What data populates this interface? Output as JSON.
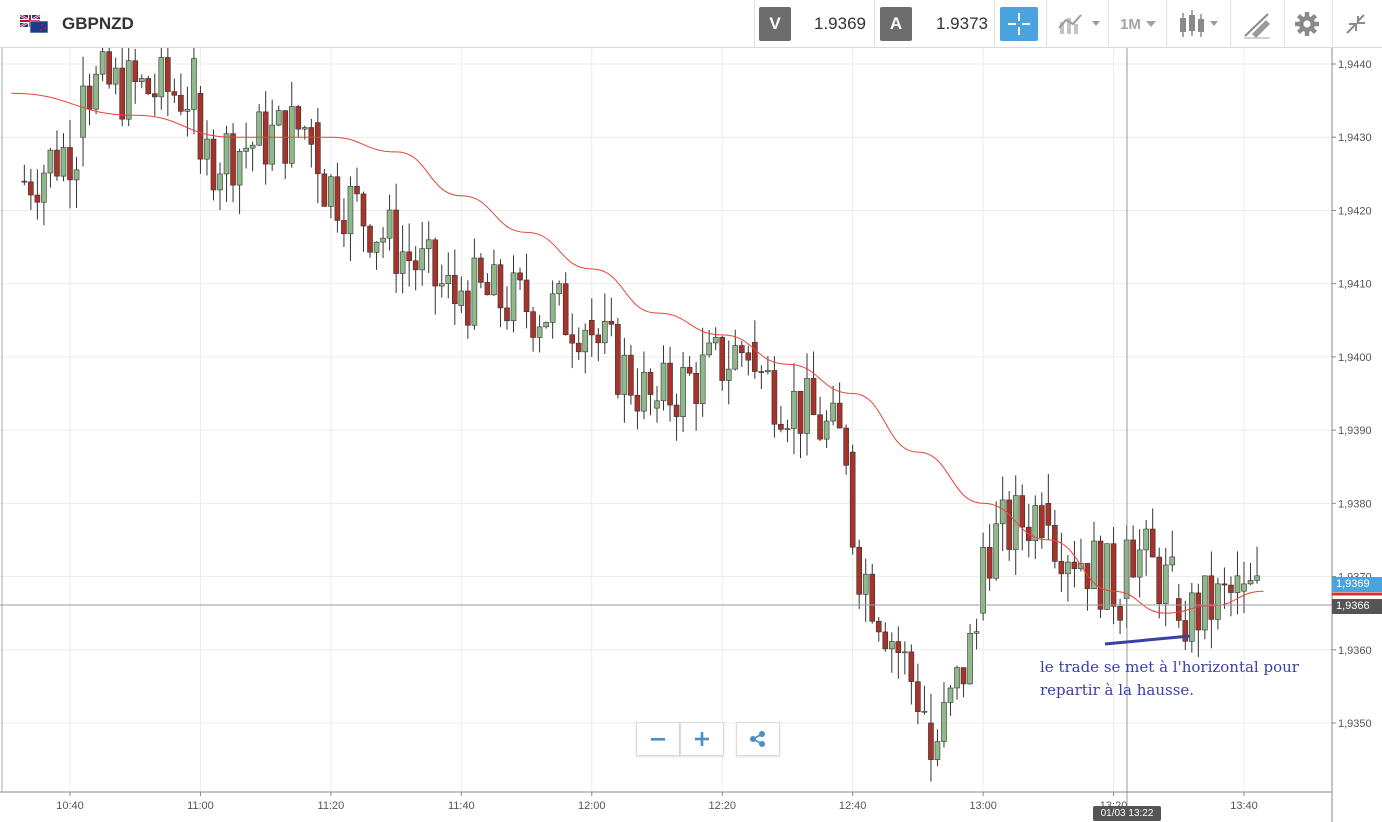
{
  "toolbar": {
    "symbol": "GBPNZD",
    "sell_label": "V",
    "sell_price": "1.9369",
    "buy_label": "A",
    "buy_price": "1.9373",
    "timeframe": "1M",
    "icons": [
      "uk-nz-flag-icon",
      "crosshair-icon",
      "line-chart-type-icon",
      "timeframe-dropdown",
      "candlestick-icon",
      "drawing-tool-icon",
      "gear-icon",
      "collapse-icon"
    ]
  },
  "chart": {
    "y_ticks": [
      "1,9440",
      "1,9430",
      "1,9420",
      "1,9410",
      "1,9400",
      "1,9390",
      "1,9380",
      "1,9370",
      "1,9360",
      "1,9350"
    ],
    "x_ticks": [
      "10:40",
      "11:00",
      "11:20",
      "11:40",
      "12:00",
      "12:20",
      "12:40",
      "13:00",
      "13:20",
      "13:40"
    ],
    "current_price_tag": "1,9369",
    "crosshair_price_tag": "1,9366",
    "crosshair_time_tag": "01/03 13:22",
    "colors": {
      "bull": "#8fb98a",
      "bear": "#a8332a",
      "moving_average": "#e8443a",
      "annotation_line": "#3b3faa"
    }
  },
  "chart_data": {
    "type": "candlestick",
    "timeframe": "1M",
    "y_range": [
      1.9342,
      1.9447
    ],
    "x_range": [
      "10:31",
      "13:54"
    ],
    "moving_average": [
      {
        "t": "10:31",
        "v": 1.9436
      },
      {
        "t": "10:50",
        "v": 1.9433
      },
      {
        "t": "11:05",
        "v": 1.943
      },
      {
        "t": "11:20",
        "v": 1.943
      },
      {
        "t": "11:30",
        "v": 1.9428
      },
      {
        "t": "11:40",
        "v": 1.9422
      },
      {
        "t": "11:50",
        "v": 1.9417
      },
      {
        "t": "12:00",
        "v": 1.9412
      },
      {
        "t": "12:10",
        "v": 1.9406
      },
      {
        "t": "12:20",
        "v": 1.9403
      },
      {
        "t": "12:30",
        "v": 1.9399
      },
      {
        "t": "12:40",
        "v": 1.9395
      },
      {
        "t": "12:50",
        "v": 1.9387
      },
      {
        "t": "13:00",
        "v": 1.938
      },
      {
        "t": "13:10",
        "v": 1.9375
      },
      {
        "t": "13:20",
        "v": 1.9368
      },
      {
        "t": "13:28",
        "v": 1.9365
      },
      {
        "t": "13:35",
        "v": 1.9366
      },
      {
        "t": "13:43",
        "v": 1.9368
      }
    ],
    "candle_key_points": [
      {
        "t": "10:42",
        "o": 1.943,
        "h": 1.9441,
        "l": 1.9426,
        "c": 1.9437
      },
      {
        "t": "11:00",
        "o": 1.9436,
        "h": 1.9437,
        "l": 1.9425,
        "c": 1.9427
      },
      {
        "t": "11:18",
        "o": 1.9432,
        "h": 1.9434,
        "l": 1.9421,
        "c": 1.9425
      },
      {
        "t": "11:40",
        "o": 1.9407,
        "h": 1.9411,
        "l": 1.9406,
        "c": 1.9409
      },
      {
        "t": "12:00",
        "o": 1.9405,
        "h": 1.9408,
        "l": 1.94,
        "c": 1.9403
      },
      {
        "t": "12:10",
        "o": 1.9393,
        "h": 1.9396,
        "l": 1.9391,
        "c": 1.9394
      },
      {
        "t": "12:25",
        "o": 1.9402,
        "h": 1.9405,
        "l": 1.9397,
        "c": 1.9398
      },
      {
        "t": "12:40",
        "o": 1.9387,
        "h": 1.9388,
        "l": 1.9373,
        "c": 1.9374
      },
      {
        "t": "12:52",
        "o": 1.935,
        "h": 1.9354,
        "l": 1.9342,
        "c": 1.9345
      },
      {
        "t": "13:00",
        "o": 1.9365,
        "h": 1.9376,
        "l": 1.9364,
        "c": 1.9374
      },
      {
        "t": "13:10",
        "o": 1.938,
        "h": 1.9384,
        "l": 1.9375,
        "c": 1.9377
      },
      {
        "t": "13:22",
        "o": 1.9367,
        "h": 1.9377,
        "l": 1.9363,
        "c": 1.9375
      },
      {
        "t": "13:30",
        "o": 1.9367,
        "h": 1.9369,
        "l": 1.9363,
        "c": 1.9364
      },
      {
        "t": "13:40",
        "o": 1.9368,
        "h": 1.9372,
        "l": 1.9365,
        "c": 1.9369
      }
    ]
  },
  "annotation": {
    "line1": "le trade se met à l'horizontal pour",
    "line2": "repartir à la hausse."
  }
}
